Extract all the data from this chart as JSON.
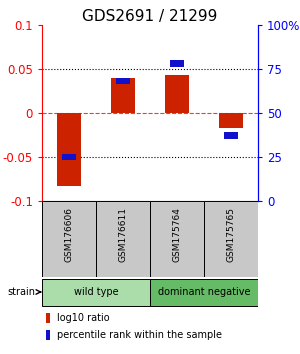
{
  "title": "GDS2691 / 21299",
  "samples": [
    "GSM176606",
    "GSM176611",
    "GSM175764",
    "GSM175765"
  ],
  "log10_ratio": [
    -0.083,
    0.04,
    0.043,
    -0.018
  ],
  "percentile_rank": [
    25,
    68,
    78,
    37
  ],
  "groups": [
    {
      "label": "wild type",
      "samples": [
        0,
        1
      ],
      "color": "#aaddaa"
    },
    {
      "label": "dominant negative",
      "samples": [
        2,
        3
      ],
      "color": "#66bb66"
    }
  ],
  "strain_label": "strain",
  "ylim": [
    -0.1,
    0.1
  ],
  "y2lim": [
    0,
    100
  ],
  "yticks": [
    -0.1,
    -0.05,
    0,
    0.05,
    0.1
  ],
  "y2ticks": [
    0,
    25,
    50,
    75,
    100
  ],
  "red_color": "#CC2200",
  "blue_color": "#1111CC",
  "legend_red": "log10 ratio",
  "legend_blue": "percentile rank within the sample",
  "title_fontsize": 11,
  "tick_fontsize": 8.5
}
